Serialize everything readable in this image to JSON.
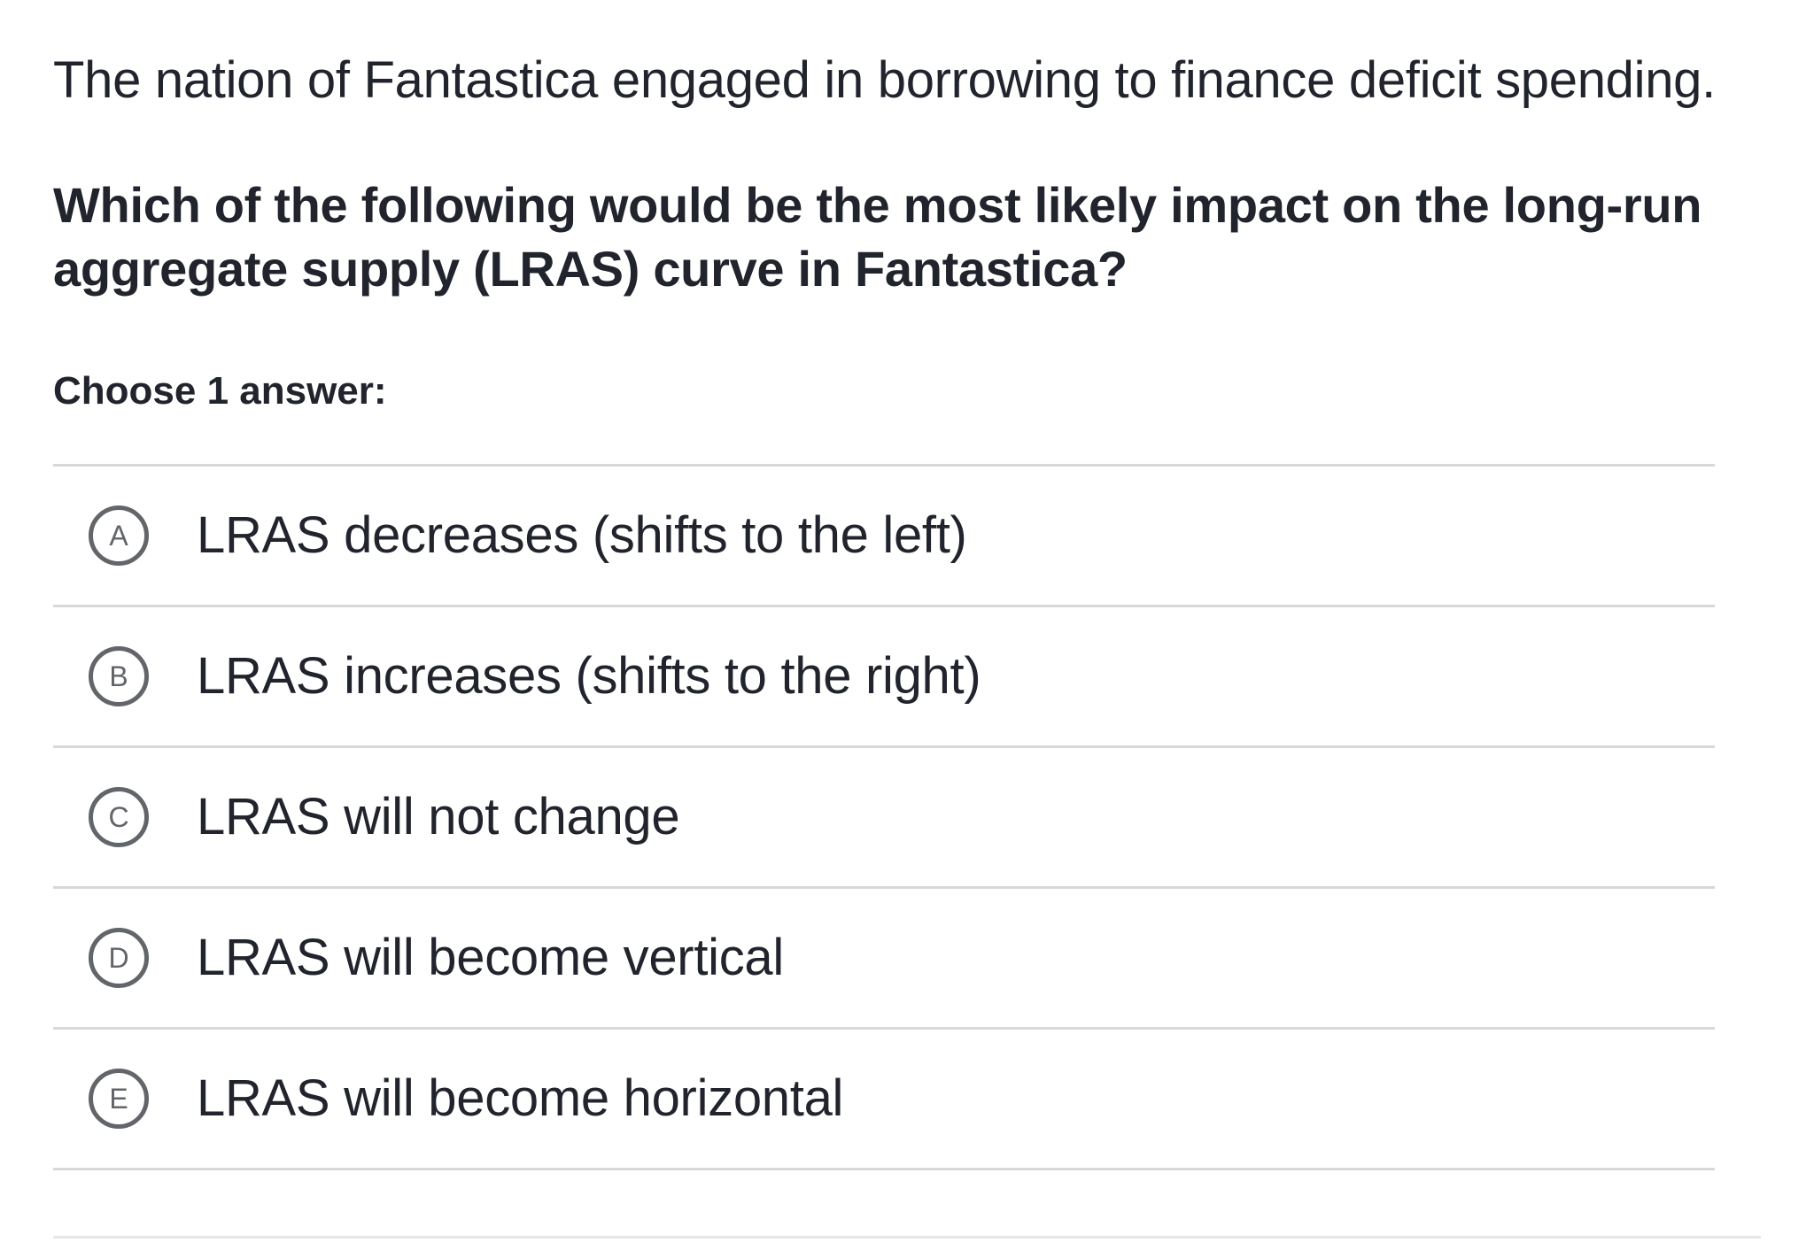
{
  "stem": "The nation of Fantastica engaged in borrowing to finance deficit spending.",
  "question": "Which of the following would be the most likely impact on the long-run aggregate supply (LRAS) curve in Fantastica?",
  "instruction": "Choose 1 answer:",
  "choices": [
    {
      "letter": "A",
      "text": "LRAS decreases (shifts to the left)"
    },
    {
      "letter": "B",
      "text": "LRAS increases (shifts to the right)"
    },
    {
      "letter": "C",
      "text": "LRAS will not change"
    },
    {
      "letter": "D",
      "text": "LRAS will become vertical"
    },
    {
      "letter": "E",
      "text": "LRAS will become horizontal"
    }
  ],
  "colors": {
    "text": "#21242c",
    "bubble_border": "#626569",
    "divider": "#d6d8da"
  }
}
